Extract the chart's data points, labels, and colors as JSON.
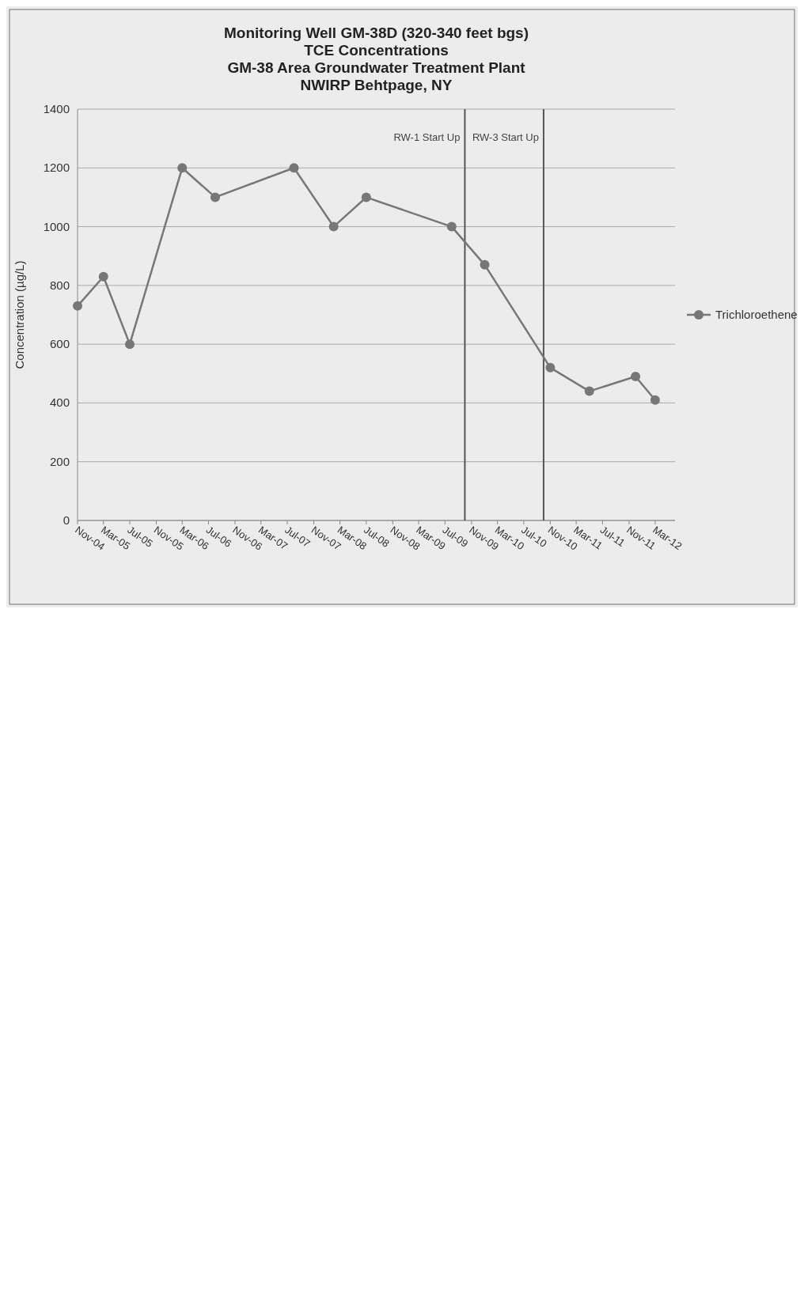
{
  "chart_data": {
    "type": "line",
    "title": "Monitoring Well GM-38D (320-340 feet bgs)\nTCE Concentrations\nGM-38  Area Groundwater Treatment Plant\nNWIRP Behtpage, NY",
    "ylabel": "Concentration (µg/L)",
    "x": [
      "2004-11",
      "2005-03",
      "2005-07",
      "2006-03",
      "2006-08",
      "2007-08",
      "2008-02",
      "2008-07",
      "2009-08",
      "2010-01",
      "2010-11",
      "2011-05",
      "2011-12",
      "2012-03"
    ],
    "series": [
      {
        "name": "Trichloroethene",
        "color": "#777777",
        "values": [
          730,
          830,
          600,
          1200,
          1100,
          1200,
          1000,
          1100,
          1000,
          870,
          520,
          440,
          490,
          410
        ]
      }
    ],
    "xlim": [
      "2004-11",
      "2012-06"
    ],
    "xticks": [
      {
        "value": "2004-11",
        "label": "Nov-04"
      },
      {
        "value": "2005-03",
        "label": "Mar-05"
      },
      {
        "value": "2005-07",
        "label": "Jul-05"
      },
      {
        "value": "2005-11",
        "label": "Nov-05"
      },
      {
        "value": "2006-03",
        "label": "Mar-06"
      },
      {
        "value": "2006-07",
        "label": "Jul-06"
      },
      {
        "value": "2006-11",
        "label": "Nov-06"
      },
      {
        "value": "2007-03",
        "label": "Mar-07"
      },
      {
        "value": "2007-07",
        "label": "Jul-07"
      },
      {
        "value": "2007-11",
        "label": "Nov-07"
      },
      {
        "value": "2008-03",
        "label": "Mar-08"
      },
      {
        "value": "2008-07",
        "label": "Jul-08"
      },
      {
        "value": "2008-11",
        "label": "Nov-08"
      },
      {
        "value": "2009-03",
        "label": "Mar-09"
      },
      {
        "value": "2009-07",
        "label": "Jul-09"
      },
      {
        "value": "2009-11",
        "label": "Nov-09"
      },
      {
        "value": "2010-03",
        "label": "Mar-10"
      },
      {
        "value": "2010-07",
        "label": "Jul-10"
      },
      {
        "value": "2010-11",
        "label": "Nov-10"
      },
      {
        "value": "2011-03",
        "label": "Mar-11"
      },
      {
        "value": "2011-07",
        "label": "Jul-11"
      },
      {
        "value": "2011-11",
        "label": "Nov-11"
      },
      {
        "value": "2012-03",
        "label": "Mar-12"
      }
    ],
    "ylim": [
      0,
      1400
    ],
    "yticks": [
      0,
      200,
      400,
      600,
      800,
      1000,
      1200,
      1400
    ],
    "grid": "y",
    "marker": "circle",
    "line_style": "solid",
    "legend": "right",
    "ref_lines": [
      {
        "axis": "x",
        "value": "2009-10",
        "label": "RW-1 Start Up",
        "color": "#555555"
      },
      {
        "axis": "x",
        "value": "2010-10",
        "label": "RW-3 Start Up",
        "color": "#555555"
      }
    ]
  }
}
